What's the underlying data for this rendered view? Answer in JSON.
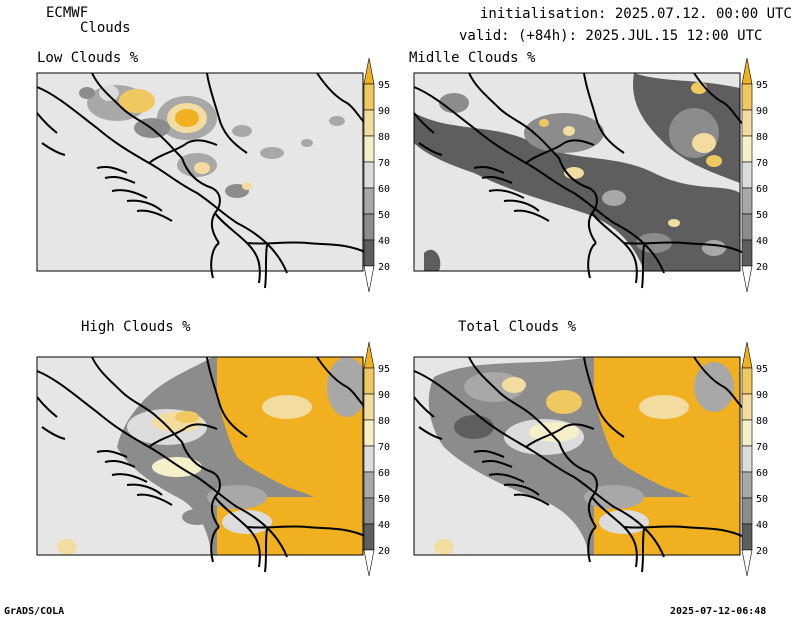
{
  "header": {
    "model": "ECMWF",
    "product": "Clouds",
    "init": "initialisation: 2025.07.12. 00:00 UTC",
    "valid": "valid: (+84h): 2025.JUL.15 12:00 UTC"
  },
  "panels": [
    {
      "id": "low",
      "title": "Low Clouds %"
    },
    {
      "id": "middle",
      "title": "Midlle Clouds %"
    },
    {
      "id": "high",
      "title": "High Clouds %"
    },
    {
      "id": "total",
      "title": "Total Clouds %"
    }
  ],
  "colorbar": {
    "levels": [
      "95",
      "90",
      "80",
      "70",
      "60",
      "50",
      "40",
      "20"
    ],
    "colors": {
      "c95": "#f0b020",
      "c90": "#f0c860",
      "c80": "#f2dca0",
      "c70": "#f6f0c8",
      "c60": "#dcdcdc",
      "c50": "#a8a8a8",
      "c40": "#8c8c8c",
      "c20": "#5e5e5e",
      "lt": "#ffffff"
    }
  },
  "colors": {
    "background": "#e6e6e6",
    "low_gray": "#5a5a5a",
    "mid_gray": "#9a9a9a",
    "light": "#f4eec0",
    "yellow": "#f0b428",
    "tan": "#f2d890"
  },
  "footer": {
    "left": "GrADS/COLA",
    "right": "2025-07-12-06:48"
  }
}
